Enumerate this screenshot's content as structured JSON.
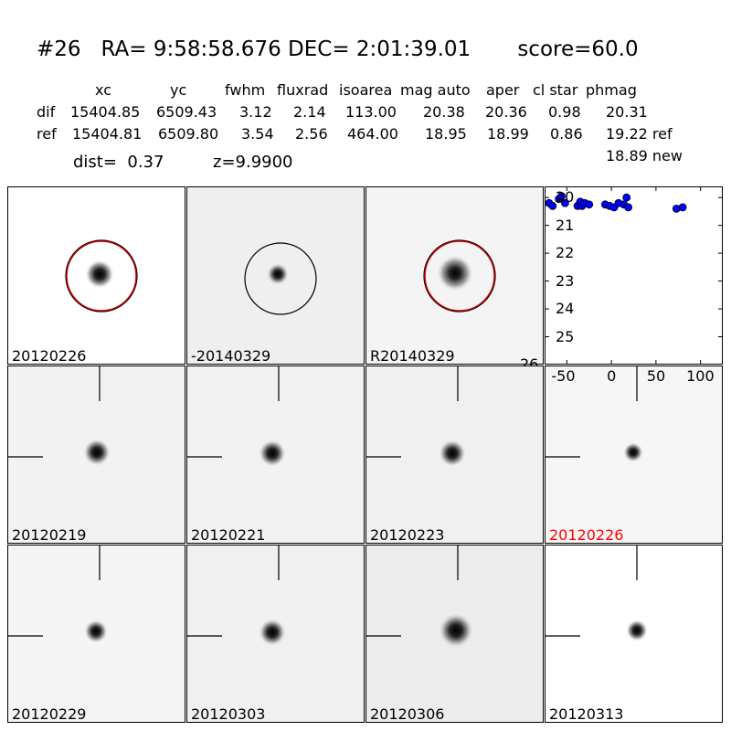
{
  "title": "#26   RA= 9:58:58.676 DEC= 2:01:39.01       score=60.0",
  "table": {
    "headers": [
      "xc",
      "yc",
      "fwhm",
      "fluxrad",
      "isoarea",
      "mag auto",
      "aper",
      "cl star",
      "phmag"
    ],
    "rows": [
      {
        "label": "dif",
        "values": [
          "15404.85",
          "6509.43",
          "3.12",
          "2.14",
          "113.00",
          "20.38",
          "20.36",
          "0.98",
          "20.31"
        ]
      },
      {
        "label": "ref",
        "values": [
          "15404.81",
          "6509.80",
          "3.54",
          "2.56",
          "464.00",
          "18.95",
          "18.99",
          "0.86",
          "19.22 ref"
        ]
      }
    ],
    "extra_phmag": "18.89 new"
  },
  "dist_text": "dist=  0.37",
  "z_text": "z=9.9900",
  "stamps": [
    {
      "label": "20120226",
      "circle": "red"
    },
    {
      "label": "-20140329",
      "circle": "black"
    },
    {
      "label": "R20140329",
      "circle": "red"
    }
  ],
  "cutouts": [
    {
      "label": "20120219"
    },
    {
      "label": "20120221"
    },
    {
      "label": "20120223"
    },
    {
      "label": "20120226",
      "label_color": "#ff0000"
    },
    {
      "label": "20120229"
    },
    {
      "label": "20120303"
    },
    {
      "label": "20120306"
    },
    {
      "label": "20120313"
    }
  ],
  "chart_data": {
    "type": "scatter",
    "xlim": [
      -75,
      125
    ],
    "ylim": [
      26,
      19.6
    ],
    "x_ticks": [
      -50,
      0,
      50,
      100
    ],
    "y_ticks": [
      20,
      21,
      22,
      23,
      24,
      25,
      26
    ],
    "marker_color": "#0000ff",
    "points": [
      {
        "x": -70,
        "y": 20.2
      },
      {
        "x": -66,
        "y": 20.3
      },
      {
        "x": -59,
        "y": 20.05
      },
      {
        "x": -56,
        "y": 19.95
      },
      {
        "x": -52,
        "y": 20.2
      },
      {
        "x": -38,
        "y": 20.3
      },
      {
        "x": -35,
        "y": 20.15
      },
      {
        "x": -33,
        "y": 20.3
      },
      {
        "x": -30,
        "y": 20.2
      },
      {
        "x": -25,
        "y": 20.25
      },
      {
        "x": -7,
        "y": 20.25
      },
      {
        "x": -2,
        "y": 20.3
      },
      {
        "x": 3,
        "y": 20.35
      },
      {
        "x": 8,
        "y": 20.2
      },
      {
        "x": 14,
        "y": 20.25
      },
      {
        "x": 17,
        "y": 20.0
      },
      {
        "x": 19,
        "y": 20.35
      },
      {
        "x": 73,
        "y": 20.4
      },
      {
        "x": 80,
        "y": 20.35
      }
    ]
  }
}
